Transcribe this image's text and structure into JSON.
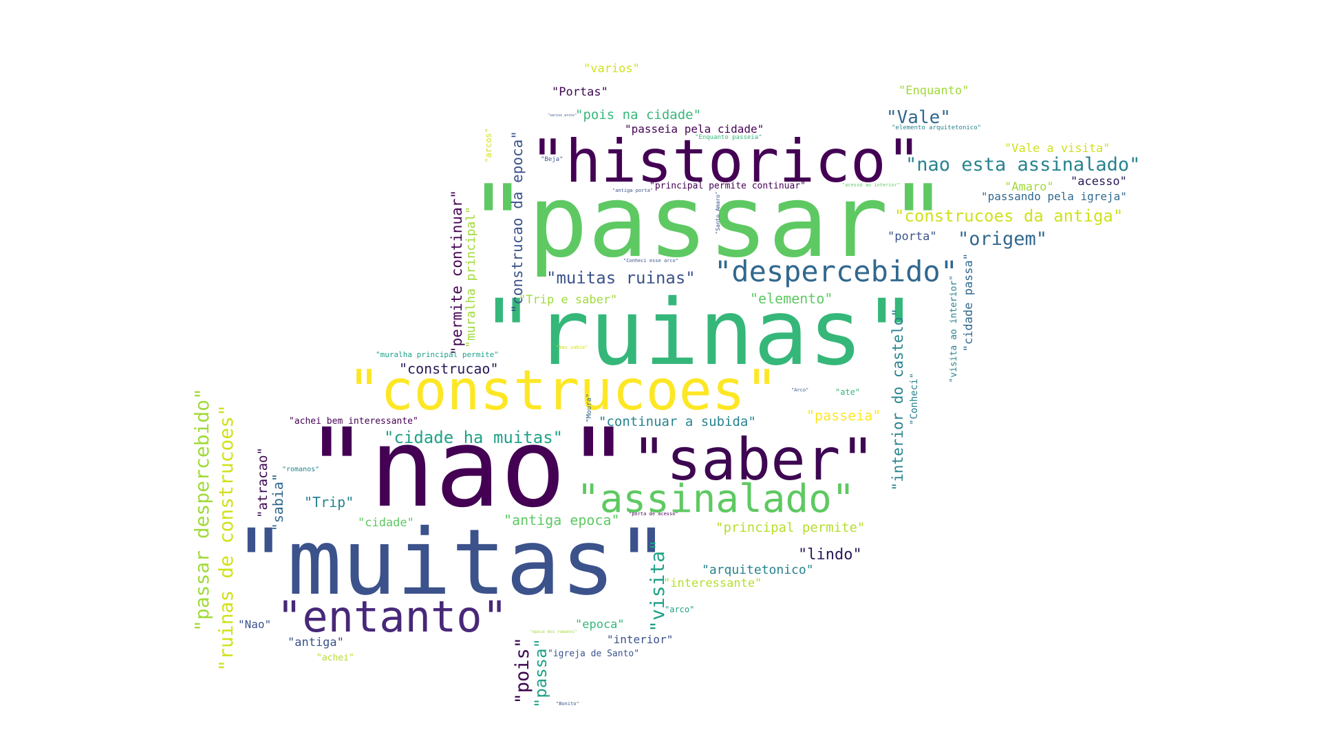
{
  "words": [
    {
      "text": "\"passar\"",
      "color": "#5ec962"
    },
    {
      "text": "\"ruinas\"",
      "color": "#35b779"
    },
    {
      "text": "\"nao\"",
      "color": "#440154"
    },
    {
      "text": "\"muitas\"",
      "color": "#3b528b"
    },
    {
      "text": "\"historico\"",
      "color": "#440154"
    },
    {
      "text": "\"construcoes\"",
      "color": "#fde725"
    },
    {
      "text": "\"saber\"",
      "color": "#3e0751"
    },
    {
      "text": "\"entanto\"",
      "color": "#482878"
    },
    {
      "text": "\"assinalado\"",
      "color": "#5ec962"
    },
    {
      "text": "\"despercebido\"",
      "color": "#31688e"
    },
    {
      "text": "\"nao esta assinalado\"",
      "color": "#26828e"
    },
    {
      "text": "\"passar despercebido\"",
      "color": "#a0da39"
    },
    {
      "text": "\"ruinas de construcoes\"",
      "color": "#d0e11c"
    },
    {
      "text": "\"construcoes da antiga\"",
      "color": "#d0e11c"
    },
    {
      "text": "\"cidade ha muitas\"",
      "color": "#1fa187"
    },
    {
      "text": "\"muitas ruinas\"",
      "color": "#3b528b"
    },
    {
      "text": "\"origem\"",
      "color": "#31688e"
    },
    {
      "text": "\"visita\"",
      "color": "#1fa187"
    },
    {
      "text": "\"interior do castelo\"",
      "color": "#26828e"
    },
    {
      "text": "\"construcao da epoca\"",
      "color": "#3b528b"
    },
    {
      "text": "\"permite continuar\"",
      "color": "#440154"
    },
    {
      "text": "\"pois\"",
      "color": "#3e0751"
    },
    {
      "text": "\"passa\"",
      "color": "#1fa187"
    },
    {
      "text": "\"Vale\"",
      "color": "#31688e"
    },
    {
      "text": "\"muralha principal\"",
      "color": "#a0da39"
    },
    {
      "text": "\"construcao\"",
      "color": "#2a1858"
    },
    {
      "text": "\"cidade passa\"",
      "color": "#31688e"
    },
    {
      "text": "\"lindo\"",
      "color": "#2a1858"
    },
    {
      "text": "\"continuar a subida\"",
      "color": "#26828e"
    },
    {
      "text": "\"Trip\"",
      "color": "#26828e"
    },
    {
      "text": "\"principal permite\"",
      "color": "#b5de2b"
    },
    {
      "text": "\"antiga epoca\"",
      "color": "#5ec962"
    },
    {
      "text": "\"pois na cidade\"",
      "color": "#35b779"
    },
    {
      "text": "\"passeia\"",
      "color": "#fde725"
    },
    {
      "text": "\"elemento\"",
      "color": "#5ec962"
    },
    {
      "text": "\"sabia\"",
      "color": "#31688e"
    },
    {
      "text": "\"atracao\"",
      "color": "#3e0751"
    },
    {
      "text": "\"arquitetonico\"",
      "color": "#26828e"
    },
    {
      "text": "\"Enquanto\"",
      "color": "#a0da39"
    },
    {
      "text": "\"passeia pela cidade\"",
      "color": "#440154"
    },
    {
      "text": "\"acesso\"",
      "color": "#2a1858"
    },
    {
      "text": "\"passando pela igreja\"",
      "color": "#31688e"
    },
    {
      "text": "\"Vale a visita\"",
      "color": "#d0e11c"
    },
    {
      "text": "\"Amaro\"",
      "color": "#a0da39"
    },
    {
      "text": "\"porta\"",
      "color": "#3b528b"
    },
    {
      "text": "\"Trip e saber\"",
      "color": "#a0da39"
    },
    {
      "text": "\"varios\"",
      "color": "#d0e11c"
    },
    {
      "text": "\"Portas\"",
      "color": "#3e0751"
    },
    {
      "text": "\"interessante\"",
      "color": "#b5de2b"
    },
    {
      "text": "\"epoca\"",
      "color": "#35b779"
    },
    {
      "text": "\"cidade\"",
      "color": "#5ec962"
    },
    {
      "text": "\"antiga\"",
      "color": "#3b528b"
    },
    {
      "text": "\"interior\"",
      "color": "#3b528b"
    },
    {
      "text": "\"Nao\"",
      "color": "#3b528b"
    },
    {
      "text": "\"achei bem interessante\"",
      "color": "#440154"
    },
    {
      "text": "\"principal permite continuar\"",
      "color": "#440154"
    },
    {
      "text": "\"visita ao interior\"",
      "color": "#26828e"
    },
    {
      "text": "\"Conheci\"",
      "color": "#26828e"
    },
    {
      "text": "\"muralha principal permite\"",
      "color": "#1fa187"
    },
    {
      "text": "\"ate\"",
      "color": "#35b779"
    },
    {
      "text": "\"arcos\"",
      "color": "#d0e11c"
    },
    {
      "text": "\"igreja de Santo\"",
      "color": "#3b528b"
    },
    {
      "text": "\"achei\"",
      "color": "#b5de2b"
    },
    {
      "text": "\"arco\"",
      "color": "#1fa187"
    },
    {
      "text": "\"Moura\"",
      "color": "#31688e"
    },
    {
      "text": "\"romanos\"",
      "color": "#26828e"
    },
    {
      "text": "\"elemento arquitetonico\"",
      "color": "#26828e"
    },
    {
      "text": "\"Enquanto passeia\"",
      "color": "#35b779"
    },
    {
      "text": "\"Beja\"",
      "color": "#3b528b"
    },
    {
      "text": "\"antiga porta\"",
      "color": "#3b528b"
    },
    {
      "text": "\"Santo Amaro\"",
      "color": "#3b528b"
    },
    {
      "text": "\"acesso ao interior\"",
      "color": "#5ec962"
    },
    {
      "text": "\"Conheci esse arco\"",
      "color": "#3b528b"
    },
    {
      "text": "\"Nao sabia\"",
      "color": "#d0e11c"
    },
    {
      "text": "\"Arco\"",
      "color": "#3b528b"
    },
    {
      "text": "\"porta de acesso\"",
      "color": "#440154"
    },
    {
      "text": "\"epoca dos romanos\"",
      "color": "#a0da39"
    },
    {
      "text": "\"Bonito\"",
      "color": "#3b528b"
    },
    {
      "text": "\"varios arcos\"",
      "color": "#3b528b"
    }
  ]
}
